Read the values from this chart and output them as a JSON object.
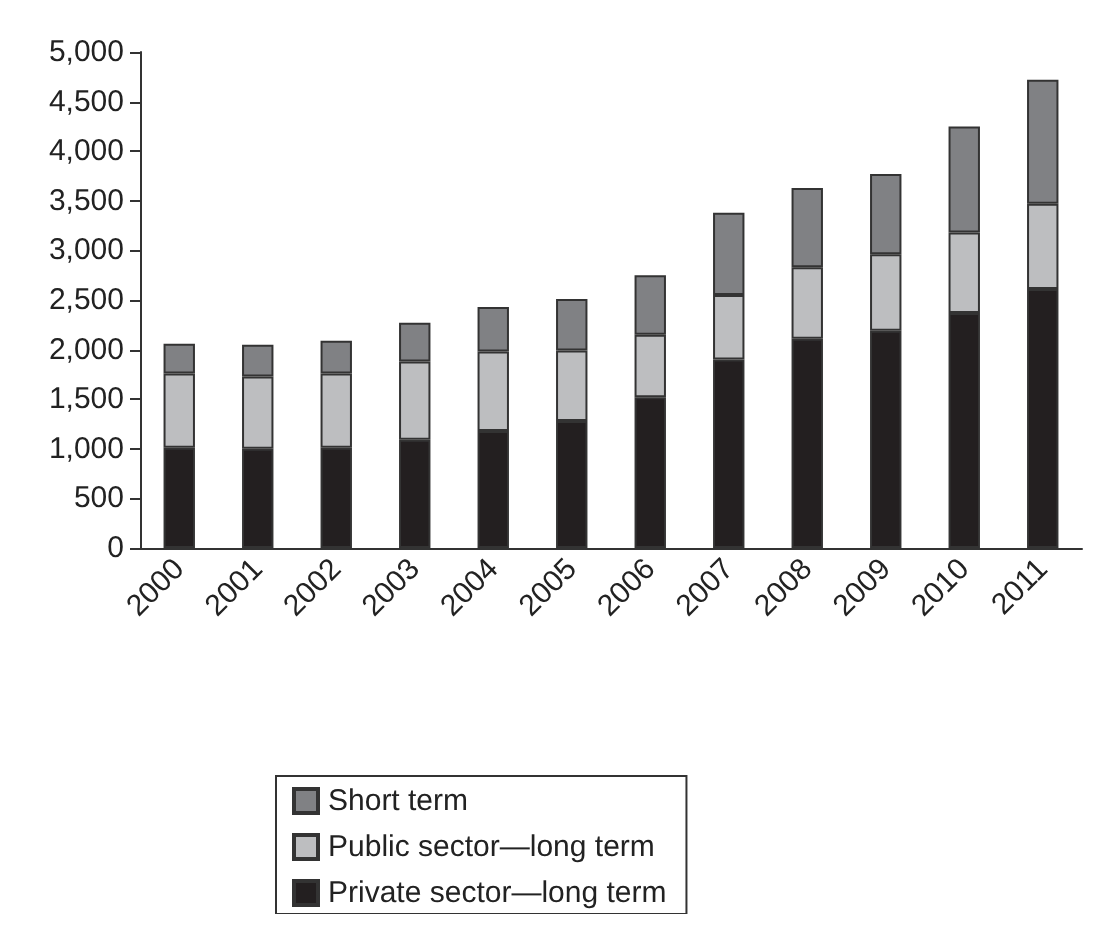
{
  "chart_data": {
    "type": "bar",
    "stacked": true,
    "categories": [
      "2000",
      "2001",
      "2002",
      "2003",
      "2004",
      "2005",
      "2006",
      "2007",
      "2008",
      "2009",
      "2010",
      "2011"
    ],
    "series": [
      {
        "name": "Private sector—long term",
        "color": "#231f20",
        "values": [
          1010,
          1000,
          1010,
          1090,
          1180,
          1280,
          1520,
          1900,
          2110,
          2190,
          2370,
          2610
        ]
      },
      {
        "name": "Public sector—long term",
        "color": "#bdbec0",
        "values": [
          750,
          730,
          750,
          790,
          800,
          710,
          630,
          650,
          720,
          770,
          810,
          860
        ]
      },
      {
        "name": "Short term",
        "color": "#808184",
        "values": [
          300,
          320,
          330,
          390,
          450,
          520,
          600,
          830,
          800,
          810,
          1070,
          1250
        ]
      }
    ],
    "ylim": [
      0,
      5000
    ],
    "yticks": [
      0,
      500,
      {
        "value": 1000,
        "label": "1,000"
      },
      {
        "value": 1500,
        "label": "1,500"
      },
      {
        "value": 2000,
        "label": "2,000"
      },
      {
        "value": 2500,
        "label": "2,500"
      },
      {
        "value": 3000,
        "label": "3,000"
      },
      {
        "value": 3500,
        "label": "3,500"
      },
      {
        "value": 4000,
        "label": "4,000"
      },
      {
        "value": 4500,
        "label": "4,500"
      },
      {
        "value": 5000,
        "label": "5,000"
      }
    ],
    "grid": false,
    "legend": "bottom"
  }
}
